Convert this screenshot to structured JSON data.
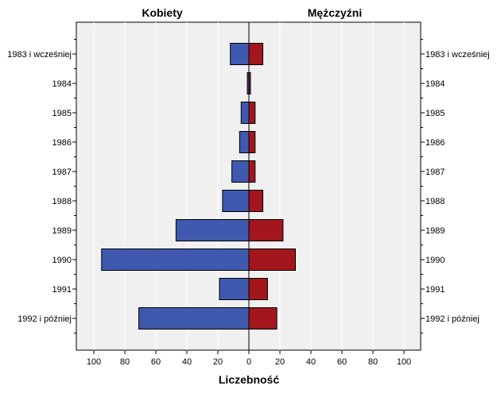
{
  "chart_data": {
    "type": "bar",
    "orientation": "horizontal-population-pyramid",
    "categories": [
      "1983 i wcześniej",
      "1984",
      "1985",
      "1986",
      "1987",
      "1988",
      "1989",
      "1990",
      "1991",
      "1992 i później"
    ],
    "series": [
      {
        "name": "Kobiety",
        "side": "left",
        "color": "#3f59ae",
        "values": [
          12,
          1,
          5,
          6,
          11,
          17,
          47,
          95,
          19,
          71
        ]
      },
      {
        "name": "Mężczyźni",
        "side": "right",
        "color": "#a3161b",
        "values": [
          9,
          1,
          4,
          4,
          4,
          9,
          22,
          30,
          12,
          18
        ]
      }
    ],
    "xlabel": "Liczebność",
    "xlim": [
      0,
      100
    ],
    "xticks": [
      100,
      80,
      60,
      40,
      20,
      0,
      20,
      40,
      60,
      80,
      100
    ],
    "plot_background": "#f0f0f0",
    "grid": true
  }
}
